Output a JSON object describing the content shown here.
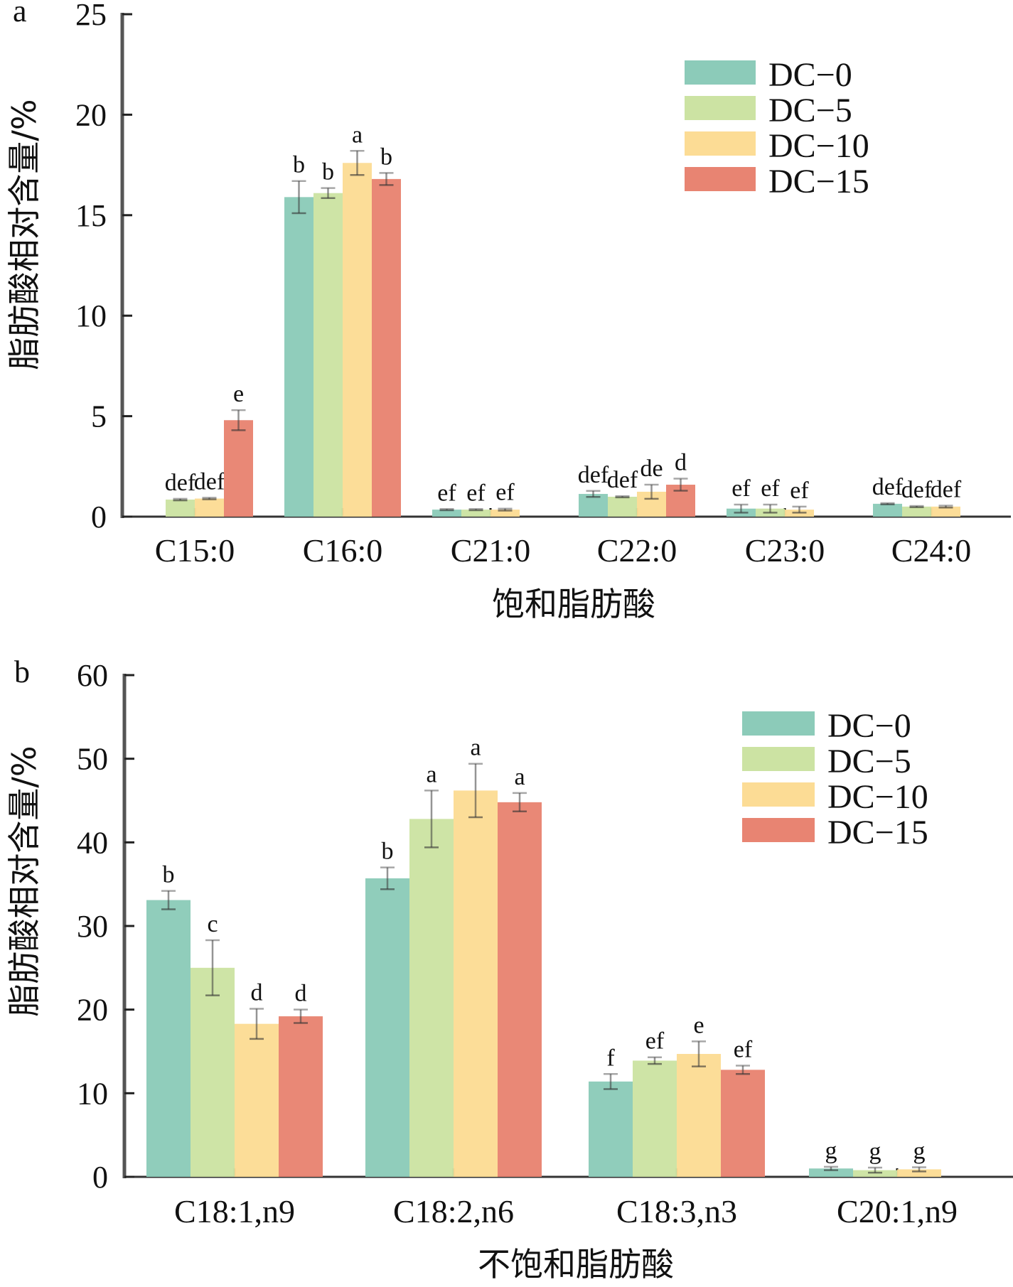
{
  "chart_data": [
    {
      "panel": "a",
      "type": "bar",
      "title": "",
      "xlabel": "饱和脂肪酸",
      "ylabel": "脂肪酸相对含量/%",
      "ylim": [
        0,
        25
      ],
      "yticks": [
        0,
        5,
        10,
        15,
        20,
        25
      ],
      "categories": [
        "C15:0",
        "C16:0",
        "C21:0",
        "C22:0",
        "C23:0",
        "C24:0"
      ],
      "legend_position": "top-right",
      "grid": false,
      "series": [
        {
          "name": "DC-0",
          "color": "#8ccbb9",
          "values": [
            0,
            15.9,
            0.35,
            1.13,
            0.4,
            0.64
          ],
          "errors": [
            0,
            0.8,
            0.03,
            0.15,
            0.2,
            0.03
          ],
          "labels": [
            "",
            "b",
            "ef",
            "def",
            "ef",
            "def"
          ]
        },
        {
          "name": "DC-5",
          "color": "#cce3a3",
          "values": [
            0.85,
            16.1,
            0.35,
            0.99,
            0.4,
            0.5
          ],
          "errors": [
            0.04,
            0.25,
            0.03,
            0.03,
            0.2,
            0.03
          ],
          "labels": [
            "def",
            "b",
            "ef",
            "def",
            "ef",
            "def"
          ]
        },
        {
          "name": "DC-10",
          "color": "#fcdc95",
          "values": [
            0.9,
            17.6,
            0.35,
            1.24,
            0.35,
            0.5
          ],
          "errors": [
            0.04,
            0.6,
            0.05,
            0.35,
            0.15,
            0.05
          ],
          "labels": [
            "def",
            "a",
            "ef",
            "de",
            "ef",
            "def"
          ]
        },
        {
          "name": "DC-15",
          "color": "#e88472",
          "values": [
            4.8,
            16.8,
            0,
            1.59,
            0,
            0
          ],
          "errors": [
            0.5,
            0.3,
            0,
            0.3,
            0,
            0
          ],
          "labels": [
            "e",
            "b",
            "",
            "d",
            "",
            ""
          ]
        }
      ]
    },
    {
      "panel": "b",
      "type": "bar",
      "title": "",
      "xlabel": "不饱和脂肪酸",
      "ylabel": "脂肪酸相对含量/%",
      "ylim": [
        0,
        60
      ],
      "yticks": [
        0,
        10,
        20,
        30,
        40,
        50,
        60
      ],
      "categories": [
        "C18:1,n9",
        "C18:2,n6",
        "C18:3,n3",
        "C20:1,n9"
      ],
      "legend_position": "top-right",
      "grid": false,
      "series": [
        {
          "name": "DC-0",
          "color": "#8ccbb9",
          "values": [
            33.1,
            35.7,
            11.4,
            1.0
          ],
          "errors": [
            1.1,
            1.3,
            0.9,
            0.2
          ],
          "labels": [
            "b",
            "b",
            "f",
            "g"
          ]
        },
        {
          "name": "DC-5",
          "color": "#cce3a3",
          "values": [
            25.0,
            42.8,
            13.9,
            0.8
          ],
          "errors": [
            3.3,
            3.4,
            0.4,
            0.3
          ],
          "labels": [
            "c",
            "a",
            "ef",
            "g"
          ]
        },
        {
          "name": "DC-10",
          "color": "#fcdc95",
          "values": [
            18.3,
            46.2,
            14.7,
            0.9
          ],
          "errors": [
            1.8,
            3.2,
            1.5,
            0.25
          ],
          "labels": [
            "d",
            "a",
            "e",
            "g"
          ]
        },
        {
          "name": "DC-15",
          "color": "#e88472",
          "values": [
            19.2,
            44.8,
            12.8,
            0
          ],
          "errors": [
            0.8,
            1.1,
            0.5,
            0
          ],
          "labels": [
            "d",
            "a",
            "ef",
            ""
          ]
        }
      ]
    }
  ]
}
